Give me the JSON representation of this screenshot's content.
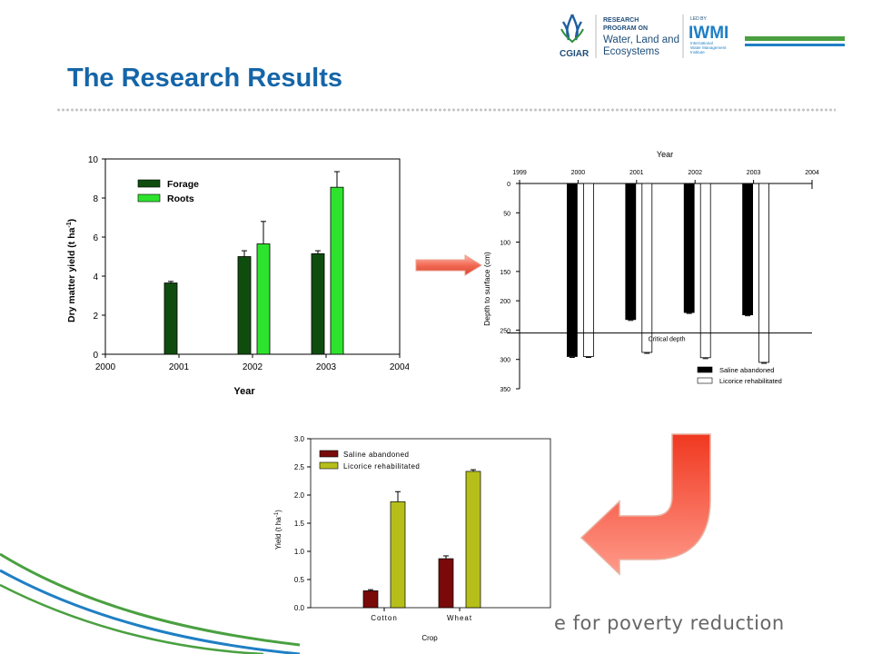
{
  "slide": {
    "title": "The Research Results",
    "tagline": "e for poverty reduction",
    "colors": {
      "title": "#1565a8",
      "accent_green": "#4a9c3a",
      "accent_blue": "#1f7fc4",
      "arrow": "#f05040"
    }
  },
  "logos": {
    "cgiar": "CGIAR",
    "program_line1": "RESEARCH",
    "program_line2": "PROGRAM ON",
    "program_line3": "Water, Land and",
    "program_line4": "Ecosystems",
    "led_by": "LED BY",
    "iwmi": "IWMI",
    "iwmi_sub1": "International",
    "iwmi_sub2": "Water Management",
    "iwmi_sub3": "Institute"
  },
  "chart_data": [
    {
      "type": "bar",
      "xlabel": "Year",
      "ylabel": "Dry matter yield (t ha-1)",
      "ylabel_main": "Dry matter yield (t ha",
      "ylabel_sup": "-1",
      "ylabel_end": ")",
      "xlim": [
        2000,
        2004
      ],
      "ylim": [
        0,
        10
      ],
      "xticks": [
        "2000",
        "2001",
        "2002",
        "2003",
        "2004"
      ],
      "yticks": [
        "0",
        "2",
        "4",
        "6",
        "8",
        "10"
      ],
      "series": [
        {
          "name": "Forage",
          "color": "#0f4d0f",
          "x": [
            2001,
            2002,
            2003
          ],
          "values": [
            3.65,
            5.0,
            5.15
          ],
          "errors": [
            0.08,
            0.3,
            0.15
          ]
        },
        {
          "name": "Roots",
          "color": "#2ee32e",
          "x": [
            2002,
            2003
          ],
          "values": [
            5.65,
            8.55
          ],
          "errors": [
            1.15,
            0.8
          ]
        }
      ]
    },
    {
      "type": "bar",
      "title": "Year",
      "ylabel": "Depth to surface (cm)",
      "xlim": [
        1999,
        2004
      ],
      "ylim": [
        350,
        0
      ],
      "xticks": [
        "1999",
        "2000",
        "2001",
        "2002",
        "2003",
        "2004"
      ],
      "yticks": [
        "0",
        "50",
        "100",
        "150",
        "200",
        "250",
        "300",
        "350"
      ],
      "annotation": "Critical depth",
      "critical_depth": 255,
      "series": [
        {
          "name": "Saline abandoned",
          "color": "#000000",
          "x": [
            2000,
            2001,
            2002,
            2003
          ],
          "values": [
            295,
            232,
            220,
            224
          ]
        },
        {
          "name": "Licorice rehabilitated",
          "color": "#ffffff",
          "x": [
            2000,
            2001,
            2002,
            2003
          ],
          "values": [
            295,
            288,
            297,
            305
          ]
        }
      ]
    },
    {
      "type": "bar",
      "xlabel": "Crop",
      "ylabel": "Yield (t ha-1)",
      "ylabel_main": "Yield (t ha",
      "ylabel_sup": "-1",
      "ylabel_end": ")",
      "ylim": [
        0,
        3.0
      ],
      "yticks": [
        "0.0",
        "0.5",
        "1.0",
        "1.5",
        "2.0",
        "2.5",
        "3.0"
      ],
      "categories": [
        "Cotton",
        "Wheat"
      ],
      "series": [
        {
          "name": "Saline abandoned",
          "color": "#7a0a0a",
          "values": [
            0.3,
            0.87
          ],
          "errors": [
            0.02,
            0.05
          ]
        },
        {
          "name": "Licorice rehabilitated",
          "color": "#b6bf1a",
          "values": [
            1.88,
            2.42
          ],
          "errors": [
            0.18,
            0.03
          ]
        }
      ]
    }
  ]
}
